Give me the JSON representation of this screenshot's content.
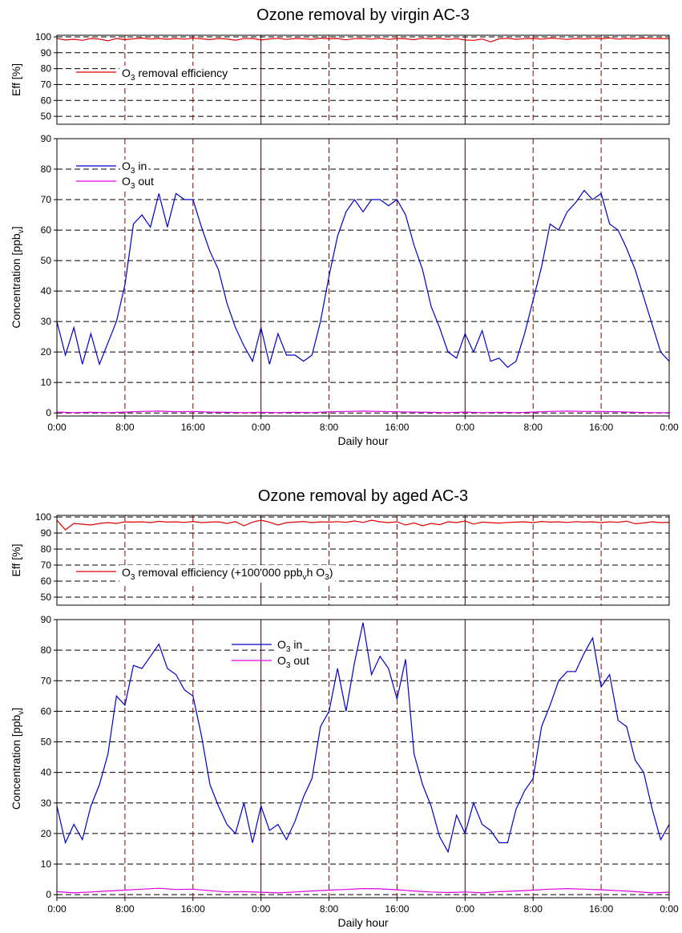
{
  "colors": {
    "efficiency": "#e00000",
    "o3_in": "#0000c8",
    "o3_out": "#e000e0",
    "grid": "#000000",
    "day_marker": "#800000"
  },
  "chart_data": [
    {
      "type": "line",
      "title": "Ozone removal by virgin AC-3",
      "xlabel": "Daily hour",
      "x_tick_labels": [
        "0:00",
        "8:00",
        "16:00",
        "0:00",
        "8:00",
        "16:00",
        "0:00",
        "8:00",
        "16:00",
        "0:00"
      ],
      "x_range_hours": [
        0,
        72
      ],
      "efficiency_panel": {
        "ylabel": "Eff [%]",
        "ylim": [
          45,
          101
        ],
        "yticks": [
          50,
          60,
          70,
          80,
          90,
          100
        ],
        "legend": {
          "label": "O3 removal efficiency",
          "label_parts": [
            "O",
            "3",
            " removal efficiency"
          ],
          "placement": "middle-left"
        },
        "series": [
          {
            "name": "O3 removal efficiency",
            "x": [
              0,
              1,
              2,
              3,
              4,
              5,
              6,
              7,
              8,
              9,
              10,
              11,
              12,
              13,
              14,
              15,
              16,
              17,
              18,
              19,
              20,
              21,
              22,
              23,
              24,
              25,
              26,
              27,
              28,
              29,
              30,
              31,
              32,
              33,
              34,
              35,
              36,
              37,
              38,
              39,
              40,
              41,
              42,
              43,
              44,
              45,
              46,
              47,
              48,
              49,
              50,
              51,
              52,
              53,
              54,
              55,
              56,
              57,
              58,
              59,
              60,
              61,
              62,
              63,
              64,
              65,
              66,
              67,
              68,
              69,
              70,
              71,
              72
            ],
            "y": [
              99,
              98,
              98.5,
              97.8,
              99,
              98.6,
              97.5,
              99,
              98.2,
              98.8,
              99.2,
              98.7,
              99,
              98.5,
              99,
              98.6,
              99.1,
              98.8,
              98.3,
              99,
              98.7,
              97.9,
              98.9,
              99,
              98,
              98.7,
              99.1,
              98.4,
              99,
              98.8,
              98.5,
              99.2,
              98.8,
              99,
              98.1,
              98.9,
              99,
              98.6,
              99.1,
              98.4,
              99,
              98.8,
              98.2,
              99.1,
              98.7,
              99,
              98.4,
              98.9,
              98,
              97.8,
              98.7,
              96.8,
              98.8,
              99.1,
              98.5,
              98.9,
              99,
              98.6,
              99.2,
              98.9,
              98.4,
              99,
              98.7,
              99.1,
              98.8,
              99.3,
              98.6,
              99,
              98.7,
              99.2,
              98.9,
              99,
              98.8
            ]
          }
        ]
      },
      "concentration_panel": {
        "ylabel": "Concentration [ppbv]",
        "ylabel_parts": [
          "Concentration [ppb",
          "v",
          "]"
        ],
        "ylim": [
          -1,
          90
        ],
        "yticks": [
          0,
          10,
          20,
          30,
          40,
          50,
          60,
          70,
          80,
          90
        ],
        "legend": {
          "placement": "top-left"
        },
        "series": [
          {
            "name": "O3 in",
            "name_parts": [
              "O",
              "3",
              " in"
            ],
            "x": [
              0,
              1,
              2,
              3,
              4,
              5,
              6,
              7,
              8,
              9,
              10,
              11,
              12,
              13,
              14,
              15,
              16,
              17,
              18,
              19,
              20,
              21,
              22,
              23,
              24,
              25,
              26,
              27,
              28,
              29,
              30,
              31,
              32,
              33,
              34,
              35,
              36,
              37,
              38,
              39,
              40,
              41,
              42,
              43,
              44,
              45,
              46,
              47,
              48,
              49,
              50,
              51,
              52,
              53,
              54,
              55,
              56,
              57,
              58,
              59,
              60,
              61,
              62,
              63,
              64,
              65,
              66,
              67,
              68,
              69,
              70,
              71,
              72
            ],
            "y": [
              30,
              19,
              28,
              16,
              26,
              16,
              23,
              30,
              42,
              62,
              65,
              61,
              72,
              61,
              72,
              70,
              70,
              61,
              53,
              47,
              36,
              28,
              22,
              17,
              28,
              16,
              26,
              19,
              19,
              17,
              19,
              30,
              45,
              58,
              66,
              70,
              66,
              70,
              70,
              68,
              70,
              65,
              55,
              47,
              35,
              28,
              20,
              18,
              26,
              20,
              27,
              17,
              18,
              15,
              17,
              26,
              37,
              48,
              62,
              60,
              66,
              69,
              73,
              70,
              72,
              62,
              60,
              54,
              47,
              38,
              29,
              20,
              17
            ]
          },
          {
            "name": "O3 out",
            "name_parts": [
              "O",
              "3",
              " out"
            ],
            "x": [
              0,
              2,
              4,
              6,
              8,
              10,
              12,
              14,
              16,
              18,
              20,
              22,
              24,
              26,
              28,
              30,
              32,
              34,
              36,
              38,
              40,
              42,
              44,
              46,
              48,
              50,
              52,
              54,
              56,
              58,
              60,
              62,
              64,
              66,
              68,
              70,
              72
            ],
            "y": [
              0.3,
              0.1,
              0.2,
              0.1,
              0.3,
              0.5,
              0.6,
              0.4,
              0.5,
              0.3,
              0.2,
              0.1,
              0.2,
              0.1,
              0.2,
              0.1,
              0.4,
              0.5,
              0.6,
              0.5,
              0.4,
              0.3,
              0.2,
              0.1,
              0.3,
              0.1,
              0.2,
              0.1,
              0.3,
              0.5,
              0.6,
              0.5,
              0.5,
              0.4,
              0.2,
              0.1,
              0.1
            ]
          }
        ]
      }
    },
    {
      "type": "line",
      "title": "Ozone removal by aged AC-3",
      "xlabel": "Daily hour",
      "x_tick_labels": [
        "0:00",
        "8:00",
        "16:00",
        "0:00",
        "8:00",
        "16:00",
        "0:00",
        "8:00",
        "16:00",
        "0:00"
      ],
      "x_range_hours": [
        0,
        72
      ],
      "efficiency_panel": {
        "ylabel": "Eff [%]",
        "ylim": [
          45,
          101
        ],
        "yticks": [
          50,
          60,
          70,
          80,
          90,
          100
        ],
        "legend": {
          "label": "O3 removal efficiency (+100'000 ppbvh O3)",
          "label_parts": [
            "O",
            "3",
            " removal efficiency (+100'000 ppb",
            "v",
            "h O",
            "3",
            ")"
          ],
          "placement": "middle-left"
        },
        "series": [
          {
            "name": "O3 removal efficiency (+100'000 ppbvh O3)",
            "x": [
              0,
              1,
              2,
              3,
              4,
              5,
              6,
              7,
              8,
              9,
              10,
              11,
              12,
              13,
              14,
              15,
              16,
              17,
              18,
              19,
              20,
              21,
              22,
              23,
              24,
              25,
              26,
              27,
              28,
              29,
              30,
              31,
              32,
              33,
              34,
              35,
              36,
              37,
              38,
              39,
              40,
              41,
              42,
              43,
              44,
              45,
              46,
              47,
              48,
              49,
              50,
              51,
              52,
              53,
              54,
              55,
              56,
              57,
              58,
              59,
              60,
              61,
              62,
              63,
              64,
              65,
              66,
              67,
              68,
              69,
              70,
              71,
              72
            ],
            "y": [
              98,
              92,
              96,
              95.5,
              95,
              96,
              96.5,
              96,
              97,
              96.8,
              97,
              96.5,
              97.3,
              96.8,
              97,
              96.6,
              97.2,
              96.5,
              96.8,
              97,
              96,
              97.1,
              94.5,
              96.8,
              98,
              96.8,
              95,
              96.5,
              96.8,
              97.2,
              96.5,
              97,
              96.8,
              97.1,
              96.7,
              97.5,
              96.6,
              98,
              97,
              96.5,
              97,
              95,
              96.3,
              94.5,
              96,
              95.2,
              97,
              96.5,
              97.5,
              95.6,
              96.8,
              96.5,
              96.2,
              96.6,
              96.8,
              97,
              96.5,
              97.2,
              96.8,
              97,
              96.6,
              97.1,
              96.8,
              97,
              96.5,
              97,
              96.7,
              97.4,
              95.8,
              96.3,
              97,
              96.5,
              96.7
            ]
          }
        ]
      },
      "concentration_panel": {
        "ylabel": "Concentration [ppbv]",
        "ylabel_parts": [
          "Concentration [ppb",
          "v",
          "]"
        ],
        "ylim": [
          -1,
          90
        ],
        "yticks": [
          0,
          10,
          20,
          30,
          40,
          50,
          60,
          70,
          80,
          90
        ],
        "legend": {
          "placement": "top-center"
        },
        "series": [
          {
            "name": "O3 in",
            "name_parts": [
              "O",
              "3",
              " in"
            ],
            "x": [
              0,
              1,
              2,
              3,
              4,
              5,
              6,
              7,
              8,
              9,
              10,
              11,
              12,
              13,
              14,
              15,
              16,
              17,
              18,
              19,
              20,
              21,
              22,
              23,
              24,
              25,
              26,
              27,
              28,
              29,
              30,
              31,
              32,
              33,
              34,
              35,
              36,
              37,
              38,
              39,
              40,
              41,
              42,
              43,
              44,
              45,
              46,
              47,
              48,
              49,
              50,
              51,
              52,
              53,
              54,
              55,
              56,
              57,
              58,
              59,
              60,
              61,
              62,
              63,
              64,
              65,
              66,
              67,
              68,
              69,
              70,
              71,
              72
            ],
            "y": [
              29,
              17,
              23,
              18,
              29,
              36,
              46,
              65,
              62,
              75,
              74,
              78,
              82,
              74,
              72,
              67,
              65,
              52,
              36,
              29,
              23,
              20,
              30,
              17,
              29,
              21,
              23,
              18,
              24,
              32,
              38,
              55,
              60,
              74,
              60,
              76,
              89,
              72,
              78,
              74,
              64,
              77,
              46,
              36,
              29,
              19,
              14,
              26,
              20,
              30,
              23,
              21,
              17,
              17,
              28,
              34,
              38,
              55,
              62,
              70,
              73,
              73,
              79,
              84,
              68,
              72,
              57,
              55,
              44,
              40,
              28,
              18,
              23
            ]
          },
          {
            "name": "O3 out",
            "name_parts": [
              "O",
              "3",
              " out"
            ],
            "x": [
              0,
              2,
              4,
              6,
              8,
              10,
              12,
              14,
              16,
              18,
              20,
              22,
              24,
              26,
              28,
              30,
              32,
              34,
              36,
              38,
              40,
              42,
              44,
              46,
              48,
              50,
              52,
              54,
              56,
              58,
              60,
              62,
              64,
              66,
              68,
              70,
              72
            ],
            "y": [
              1,
              0.6,
              0.9,
              1.2,
              1.5,
              1.8,
              2.1,
              1.7,
              1.8,
              1.3,
              0.9,
              1.0,
              0.8,
              0.6,
              0.9,
              1.2,
              1.5,
              1.7,
              2.0,
              1.9,
              1.6,
              1.2,
              0.9,
              0.7,
              0.9,
              0.6,
              1.0,
              1.2,
              1.5,
              1.8,
              2.0,
              1.8,
              1.6,
              1.3,
              1.0,
              0.6,
              0.8
            ]
          }
        ]
      }
    }
  ]
}
